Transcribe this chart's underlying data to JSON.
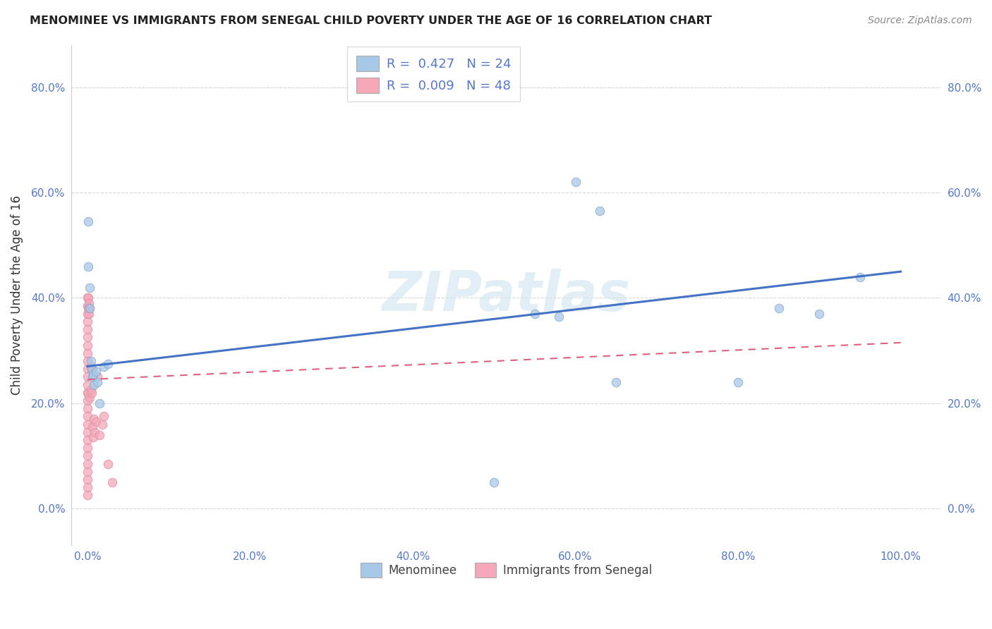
{
  "title": "MENOMINEE VS IMMIGRANTS FROM SENEGAL CHILD POVERTY UNDER THE AGE OF 16 CORRELATION CHART",
  "source": "Source: ZipAtlas.com",
  "ylabel": "Child Poverty Under the Age of 16",
  "xlabel": "",
  "legend_label1": "Menominee",
  "legend_label2": "Immigrants from Senegal",
  "R1": 0.427,
  "N1": 24,
  "R2": 0.009,
  "N2": 48,
  "blue_color": "#a8c8e8",
  "pink_color": "#f4a8b8",
  "blue_line_color": "#4472c4",
  "pink_line_color": "#e06080",
  "menominee_x": [
    0.001,
    0.001,
    0.003,
    0.003,
    0.004,
    0.005,
    0.006,
    0.007,
    0.008,
    0.01,
    0.012,
    0.015,
    0.02,
    0.025,
    0.5,
    0.55,
    0.58,
    0.6,
    0.63,
    0.65,
    0.8,
    0.85,
    0.9,
    0.95
  ],
  "menominee_y": [
    0.545,
    0.46,
    0.42,
    0.38,
    0.28,
    0.265,
    0.25,
    0.255,
    0.235,
    0.26,
    0.24,
    0.2,
    0.27,
    0.275,
    0.05,
    0.37,
    0.365,
    0.62,
    0.565,
    0.24,
    0.24,
    0.38,
    0.37,
    0.44
  ],
  "senegal_x": [
    0.0,
    0.0,
    0.0,
    0.0,
    0.0,
    0.0,
    0.0,
    0.0,
    0.0,
    0.0,
    0.0,
    0.0,
    0.0,
    0.0,
    0.0,
    0.0,
    0.0,
    0.0,
    0.0,
    0.0,
    0.0,
    0.0,
    0.0,
    0.0,
    0.0,
    0.0,
    0.001,
    0.001,
    0.001,
    0.002,
    0.002,
    0.003,
    0.003,
    0.004,
    0.004,
    0.005,
    0.005,
    0.006,
    0.007,
    0.008,
    0.009,
    0.01,
    0.012,
    0.015,
    0.018,
    0.02,
    0.025,
    0.03
  ],
  "senegal_y": [
    0.4,
    0.385,
    0.37,
    0.355,
    0.34,
    0.325,
    0.31,
    0.295,
    0.28,
    0.265,
    0.25,
    0.235,
    0.22,
    0.205,
    0.19,
    0.175,
    0.16,
    0.145,
    0.13,
    0.115,
    0.1,
    0.085,
    0.07,
    0.055,
    0.04,
    0.025,
    0.4,
    0.38,
    0.22,
    0.39,
    0.37,
    0.38,
    0.21,
    0.27,
    0.225,
    0.265,
    0.22,
    0.155,
    0.135,
    0.17,
    0.145,
    0.165,
    0.25,
    0.14,
    0.16,
    0.175,
    0.085,
    0.05
  ],
  "blue_line_x0": 0.0,
  "blue_line_y0": 0.27,
  "blue_line_x1": 1.0,
  "blue_line_y1": 0.45,
  "pink_line_x0": 0.0,
  "pink_line_y0": 0.245,
  "pink_line_x1": 1.0,
  "pink_line_y1": 0.315,
  "xlim": [
    -0.02,
    1.05
  ],
  "ylim": [
    -0.07,
    0.88
  ],
  "xticks": [
    0.0,
    0.2,
    0.4,
    0.6,
    0.8,
    1.0
  ],
  "xtick_labels": [
    "0.0%",
    "20.0%",
    "40.0%",
    "60.0%",
    "80.0%",
    "100.0%"
  ],
  "yticks": [
    0.0,
    0.2,
    0.4,
    0.6,
    0.8
  ],
  "ytick_labels": [
    "0.0%",
    "20.0%",
    "40.0%",
    "60.0%",
    "80.0%"
  ],
  "background_color": "#ffffff",
  "grid_color": "#d8d8d8",
  "axis_color": "#5577cc",
  "title_color": "#222222",
  "marker_size": 80
}
